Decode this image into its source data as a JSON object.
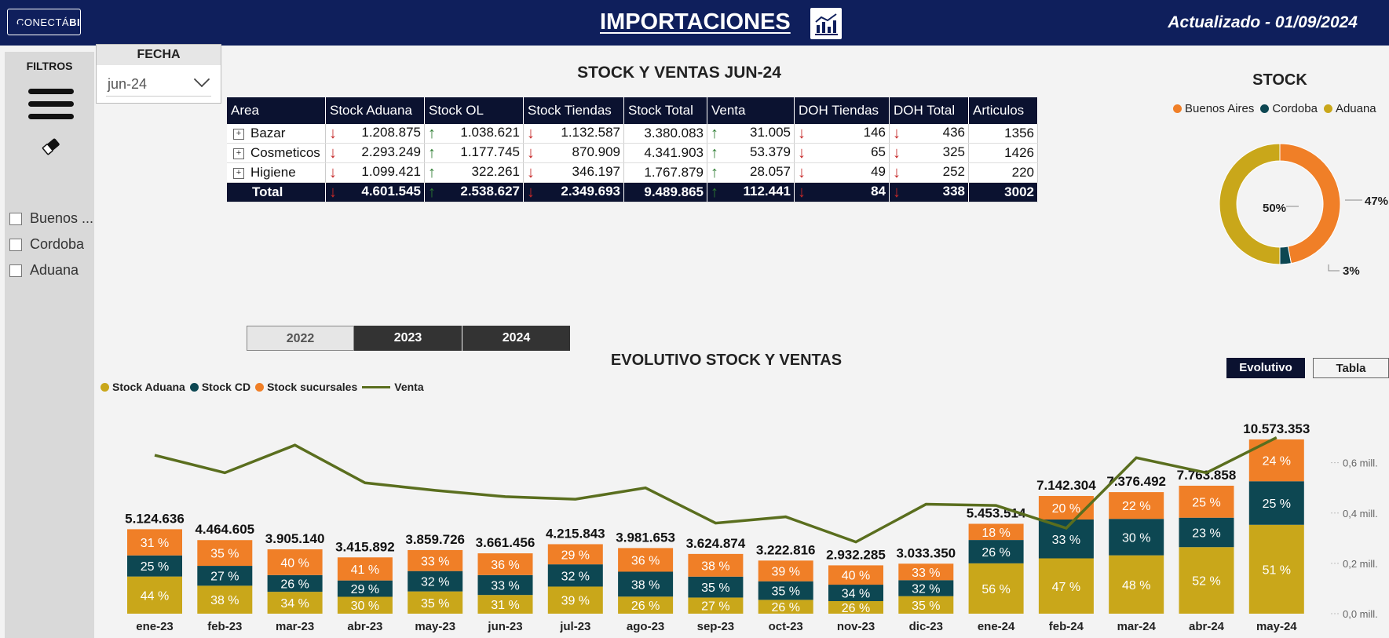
{
  "header": {
    "logo_text": "CONECTÁ",
    "logo_bold": "BI",
    "title": "IMPORTACIONES",
    "updated": "Actualizado - 01/09/2024",
    "colors": {
      "bg": "#0f1f5c"
    }
  },
  "sidebar": {
    "filters_label": "FILTROS",
    "menu_icon": "hamburger-icon",
    "eraser_icon": "eraser-icon",
    "options": [
      {
        "label": "Buenos ..."
      },
      {
        "label": "Cordoba"
      },
      {
        "label": "Aduana"
      }
    ]
  },
  "date_filter": {
    "title": "FECHA",
    "value": "jun-24"
  },
  "table": {
    "title": "STOCK Y VENTAS JUN-24",
    "headers": [
      "Area",
      "Stock Aduana",
      "Stock OL",
      "Stock Tiendas",
      "Stock Total",
      "Venta",
      "DOH Tiendas",
      "DOH Total",
      "Articulos"
    ],
    "rows": [
      {
        "area": "Bazar",
        "aduana": "1.208.875",
        "ol": "1.038.621",
        "tiendas": "1.132.587",
        "total": "3.380.083",
        "venta": "31.005",
        "doh_t": "146",
        "doh_total": "436",
        "art": "1356"
      },
      {
        "area": "Cosmeticos",
        "aduana": "2.293.249",
        "ol": "1.177.745",
        "tiendas": "870.909",
        "total": "4.341.903",
        "venta": "53.379",
        "doh_t": "65",
        "doh_total": "325",
        "art": "1426"
      },
      {
        "area": "Higiene",
        "aduana": "1.099.421",
        "ol": "322.261",
        "tiendas": "346.197",
        "total": "1.767.879",
        "venta": "28.057",
        "doh_t": "49",
        "doh_total": "252",
        "art": "220"
      }
    ],
    "total": {
      "area": "Total",
      "aduana": "4.601.545",
      "ol": "2.538.627",
      "tiendas": "2.349.693",
      "total": "9.489.865",
      "venta": "112.441",
      "doh_t": "84",
      "doh_total": "338",
      "art": "3002"
    },
    "arrows": {
      "down": "↓",
      "up": "↑"
    }
  },
  "stock_donut": {
    "title": "STOCK",
    "legend": [
      {
        "label": "Buenos Aires",
        "color": "#f07f27"
      },
      {
        "label": "Cordoba",
        "color": "#0d4752"
      },
      {
        "label": "Aduana",
        "color": "#c9a71a"
      }
    ],
    "labels": {
      "aduana": "50%",
      "ba": "47%",
      "cordoba": "3%"
    }
  },
  "year_buttons": [
    "2022",
    "2023",
    "2024"
  ],
  "evolutivo": {
    "title": "EVOLUTIVO STOCK Y VENTAS",
    "toggle": [
      "Evolutivo",
      "Tabla"
    ],
    "legend": [
      "Stock Aduana",
      "Stock CD",
      "Stock sucursales",
      "Venta"
    ]
  },
  "chart_data": [
    {
      "type": "pie",
      "title": "STOCK",
      "categories": [
        "Buenos Aires",
        "Cordoba",
        "Aduana"
      ],
      "values": [
        47,
        3,
        50
      ],
      "value_labels": [
        "47%",
        "3%",
        "50%"
      ],
      "colors": [
        "#f07f27",
        "#0d4752",
        "#c9a71a"
      ]
    },
    {
      "type": "bar",
      "title": "EVOLUTIVO STOCK Y VENTAS",
      "categories": [
        "ene-23",
        "feb-23",
        "mar-23",
        "abr-23",
        "may-23",
        "jun-23",
        "jul-23",
        "ago-23",
        "sep-23",
        "oct-23",
        "nov-23",
        "dic-23",
        "ene-24",
        "feb-24",
        "mar-24",
        "abr-24",
        "may-24"
      ],
      "totals": [
        5124636,
        4464605,
        3905140,
        3415892,
        3859726,
        3661456,
        4215843,
        3981653,
        3624874,
        3222816,
        2932285,
        3033350,
        5453514,
        7142304,
        7376492,
        7763858,
        10573353
      ],
      "total_labels": [
        "5.124.636",
        "4.464.605",
        "3.905.140",
        "3.415.892",
        "3.859.726",
        "3.661.456",
        "4.215.843",
        "3.981.653",
        "3.624.874",
        "3.222.816",
        "2.932.285",
        "3.033.350",
        "5.453.514",
        "7.142.304",
        "7.376.492",
        "7.763.858",
        "10.573.353"
      ],
      "series": [
        {
          "name": "Stock Aduana",
          "color": "#c9a71a",
          "pct": [
            44,
            38,
            34,
            30,
            35,
            31,
            39,
            26,
            27,
            26,
            26,
            35,
            56,
            47,
            48,
            52,
            51
          ]
        },
        {
          "name": "Stock CD",
          "color": "#0d4752",
          "pct": [
            25,
            27,
            26,
            29,
            32,
            33,
            32,
            38,
            35,
            35,
            34,
            32,
            26,
            33,
            30,
            23,
            25
          ]
        },
        {
          "name": "Stock sucursales",
          "color": "#f07f27",
          "pct": [
            31,
            35,
            40,
            41,
            33,
            36,
            29,
            36,
            38,
            39,
            40,
            33,
            18,
            20,
            22,
            25,
            24
          ]
        }
      ],
      "line": {
        "name": "Venta",
        "color": "#5a6e1e",
        "values": [
          0.63,
          0.56,
          0.67,
          0.52,
          0.49,
          0.465,
          0.455,
          0.5,
          0.36,
          0.385,
          0.285,
          0.435,
          0.43,
          0.34,
          0.62,
          0.56,
          0.7
        ]
      },
      "y_axis_right": {
        "ticks": [
          "0,0 mill.",
          "0,2 mill.",
          "0,4 mill.",
          "0,6 mill."
        ],
        "values": [
          0,
          0.2,
          0.4,
          0.6
        ]
      }
    }
  ]
}
